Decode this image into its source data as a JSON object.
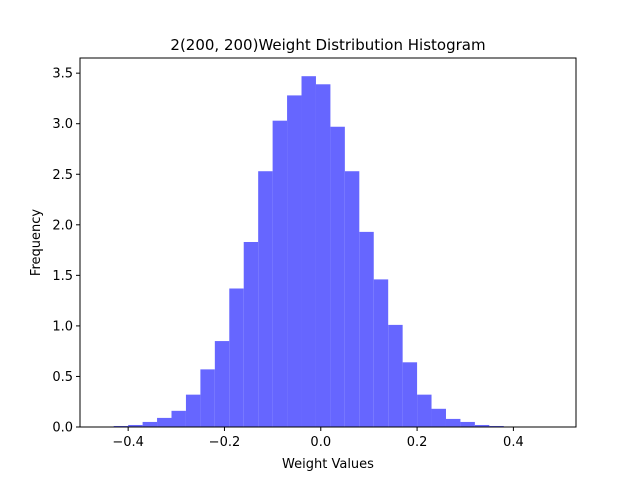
{
  "chart_data": {
    "type": "bar",
    "title": "2(200, 200)Weight Distribution Histogram",
    "xlabel": "Weight Values",
    "ylabel": "Frequency",
    "xlim": [
      -0.5,
      0.53
    ],
    "ylim": [
      0,
      3.65
    ],
    "grid": false,
    "bar_color": "#6666ff",
    "bin_width": 0.03,
    "bins_start": [
      -0.43,
      -0.4,
      -0.37,
      -0.34,
      -0.31,
      -0.28,
      -0.25,
      -0.22,
      -0.19,
      -0.16,
      -0.13,
      -0.1,
      -0.07,
      -0.04,
      -0.01,
      0.02,
      0.05,
      0.08,
      0.11,
      0.14,
      0.17,
      0.2,
      0.23,
      0.26,
      0.29,
      0.32,
      0.35,
      0.38,
      0.41,
      0.44
    ],
    "values": [
      0.01,
      0.02,
      0.05,
      0.09,
      0.16,
      0.32,
      0.57,
      0.85,
      1.37,
      1.83,
      2.53,
      3.03,
      3.28,
      3.47,
      3.39,
      2.97,
      2.53,
      1.93,
      1.46,
      1.01,
      0.64,
      0.32,
      0.18,
      0.08,
      0.05,
      0.02,
      0.01,
      0.0,
      0.0,
      0.0
    ],
    "xticks": [
      -0.4,
      -0.2,
      0.0,
      0.2,
      0.4
    ],
    "xtick_labels": [
      "−0.4",
      "−0.2",
      "0.0",
      "0.2",
      "0.4"
    ],
    "yticks": [
      0.0,
      0.5,
      1.0,
      1.5,
      2.0,
      2.5,
      3.0,
      3.5
    ],
    "ytick_labels": [
      "0.0",
      "0.5",
      "1.0",
      "1.5",
      "2.0",
      "2.5",
      "3.0",
      "3.5"
    ]
  }
}
